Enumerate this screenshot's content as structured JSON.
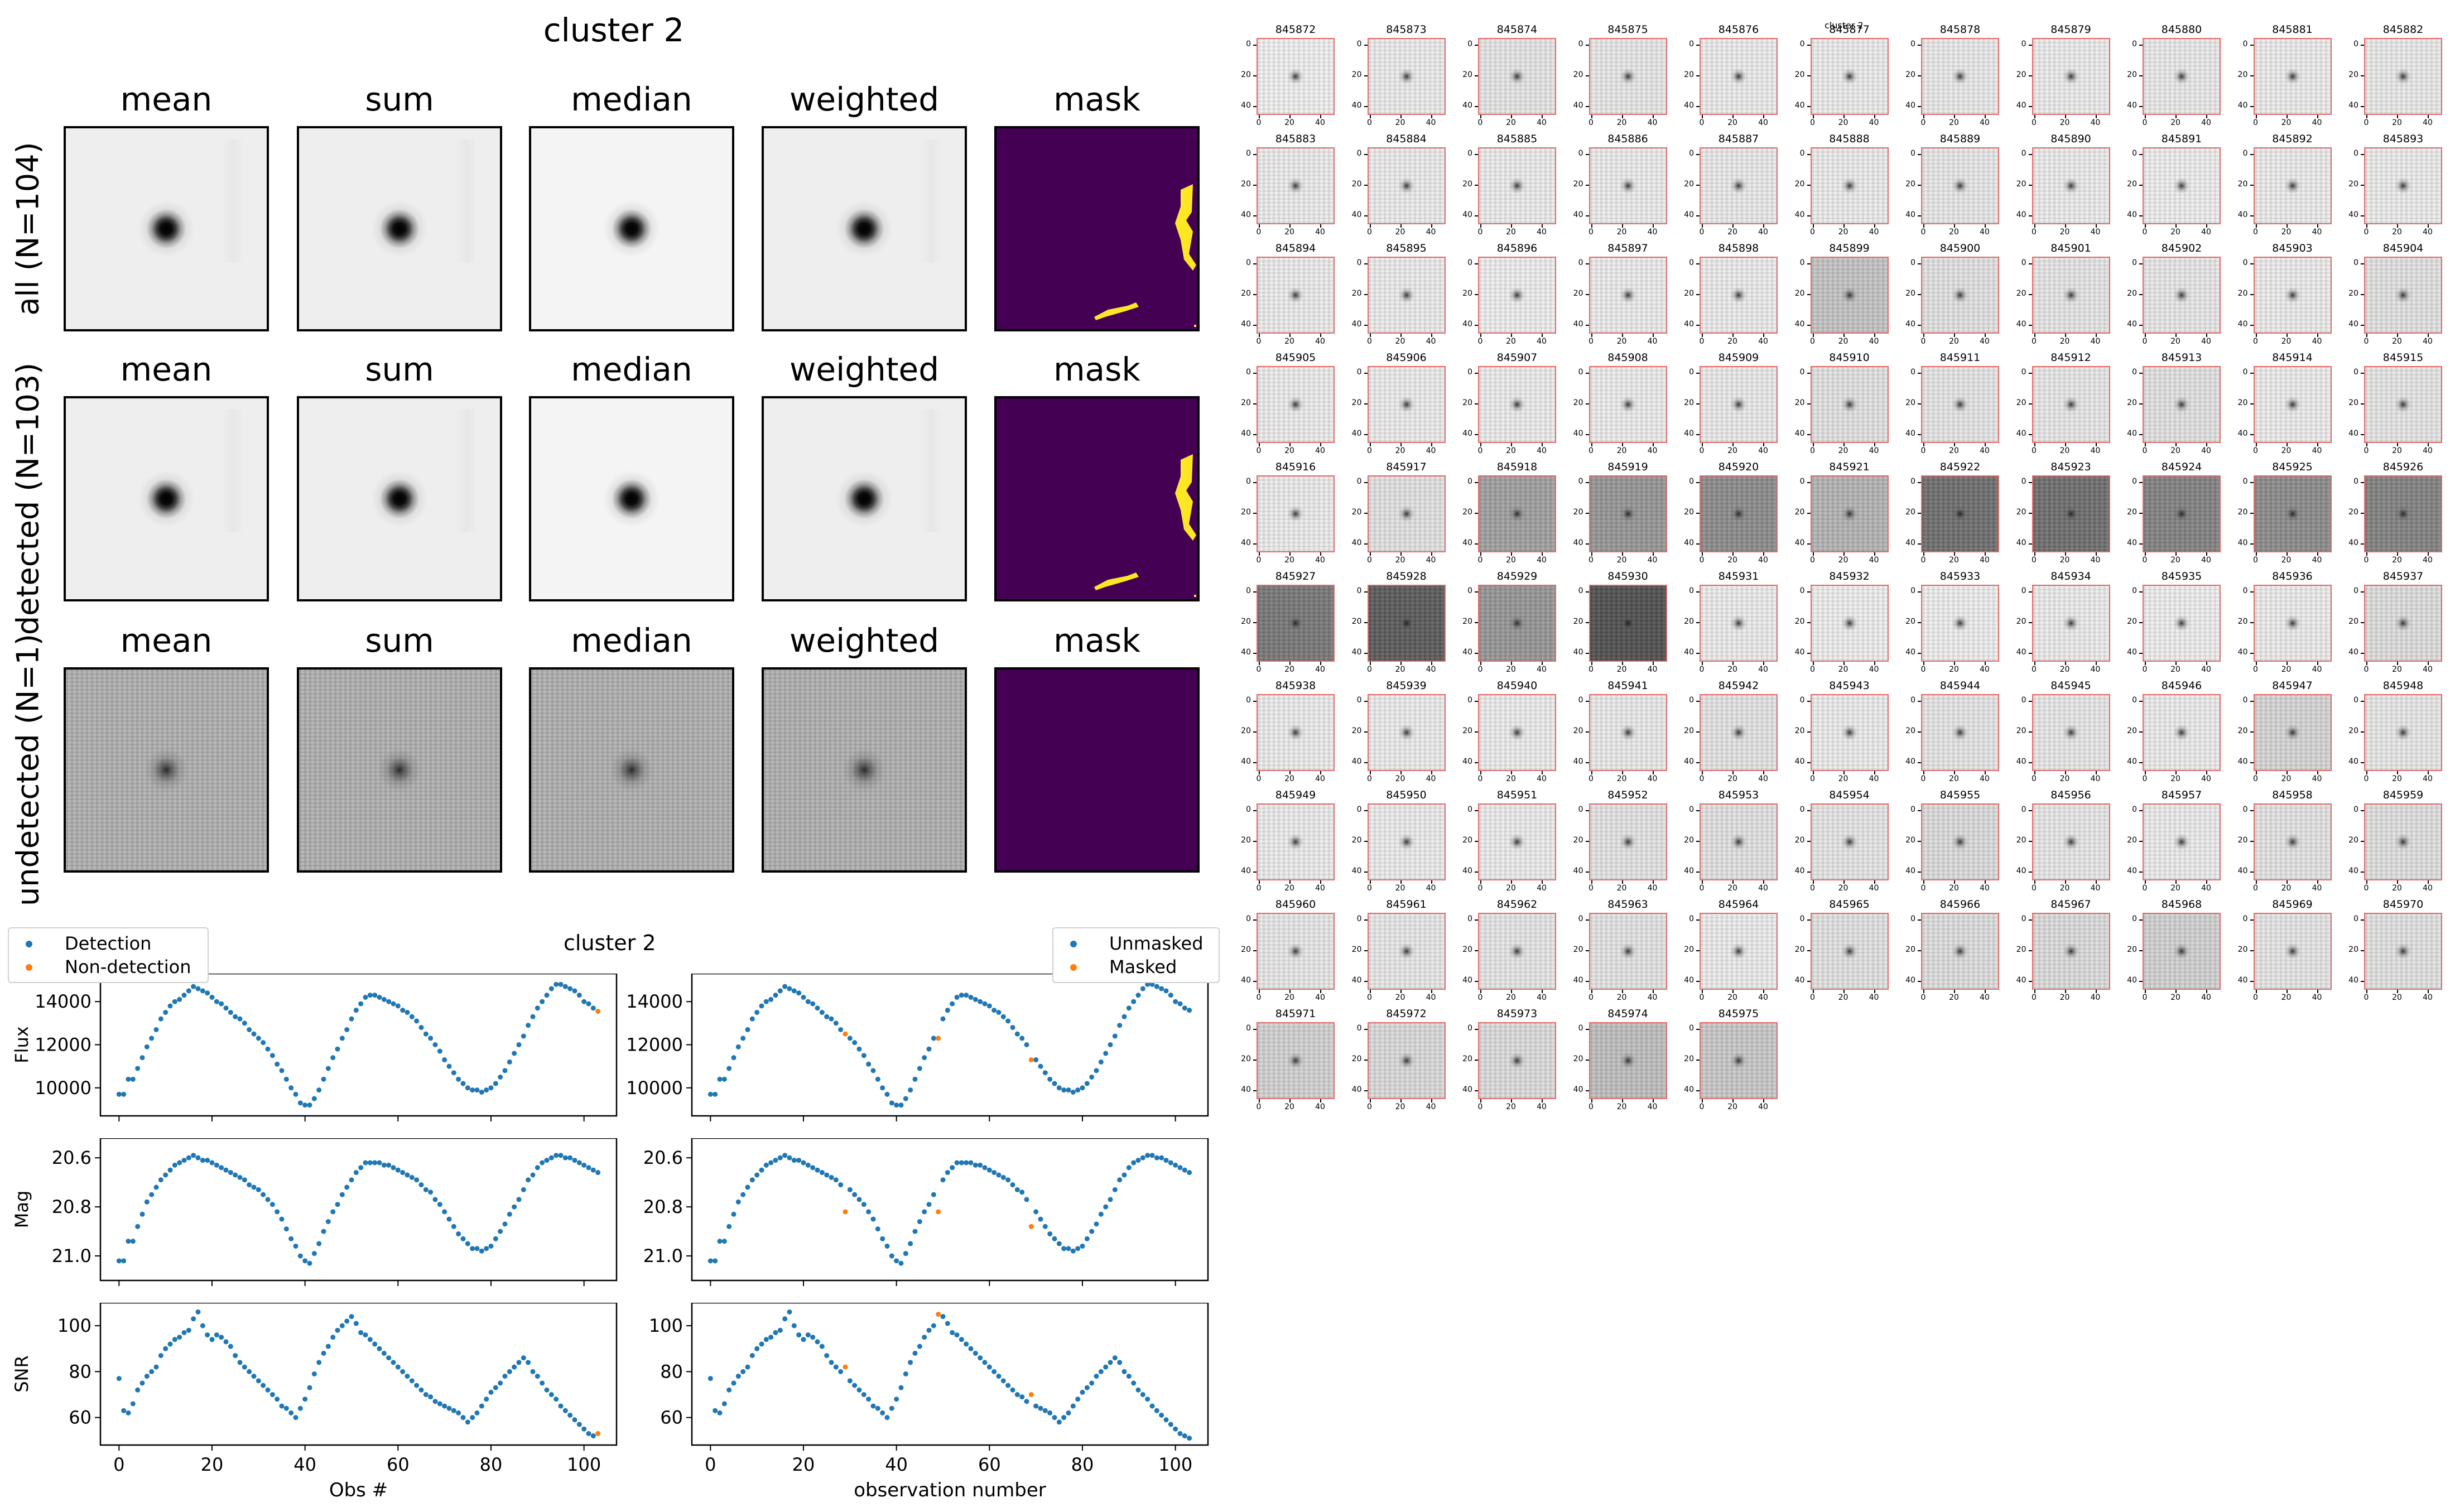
{
  "figure_title": "cluster 2",
  "stack_columns": [
    "mean",
    "sum",
    "median",
    "weighted",
    "mask"
  ],
  "stack_rows": [
    {
      "label": "all (N=104)",
      "noisy": false,
      "mask_shapes": true
    },
    {
      "label": "detected (N=103)",
      "noisy": false,
      "mask_shapes": true
    },
    {
      "label": "undetected (N=1)",
      "noisy": true,
      "mask_shapes": false
    }
  ],
  "colors": {
    "detection": "#1f77b4",
    "non_detection": "#ff7f0e",
    "mask_bg": "#440154",
    "mask_fg": "#fde725",
    "thumb_border": "#e46c6c"
  },
  "lightcurve_title": "cluster 2",
  "legend_left": [
    "Detection",
    "Non-detection"
  ],
  "legend_right": [
    "Unmasked",
    "Masked"
  ],
  "thumbs": {
    "ids": [
      "845872",
      "845873",
      "845874",
      "845875",
      "845876",
      "845877",
      "845878",
      "845879",
      "845880",
      "845881",
      "845882",
      "845883",
      "845884",
      "845885",
      "845886",
      "845887",
      "845888",
      "845889",
      "845890",
      "845891",
      "845892",
      "845893",
      "845894",
      "845895",
      "845896",
      "845897",
      "845898",
      "845899",
      "845900",
      "845901",
      "845902",
      "845903",
      "845904",
      "845905",
      "845906",
      "845907",
      "845908",
      "845909",
      "845910",
      "845911",
      "845912",
      "845913",
      "845914",
      "845915",
      "845916",
      "845917",
      "845918",
      "845919",
      "845920",
      "845921",
      "845922",
      "845923",
      "845924",
      "845925",
      "845926",
      "845927",
      "845928",
      "845929",
      "845930",
      "845931",
      "845932",
      "845933",
      "845934",
      "845935",
      "845936",
      "845937",
      "845938",
      "845939",
      "845940",
      "845941",
      "845942",
      "845943",
      "845944",
      "845945",
      "845946",
      "845947",
      "845948",
      "845949",
      "845950",
      "845951",
      "845952",
      "845953",
      "845954",
      "845955",
      "845956",
      "845957",
      "845958",
      "845959",
      "845960",
      "845961",
      "845962",
      "845963",
      "845964",
      "845965",
      "845966",
      "845967",
      "845968",
      "845969",
      "845970",
      "845971",
      "845972",
      "845973",
      "845974",
      "845975"
    ],
    "bg_gray": [
      240,
      236,
      230,
      232,
      236,
      236,
      234,
      236,
      234,
      236,
      234,
      236,
      236,
      236,
      236,
      234,
      236,
      232,
      236,
      238,
      236,
      236,
      236,
      236,
      238,
      236,
      236,
      196,
      226,
      230,
      232,
      236,
      226,
      236,
      236,
      236,
      236,
      234,
      226,
      230,
      232,
      226,
      236,
      230,
      236,
      226,
      160,
      150,
      140,
      180,
      110,
      110,
      130,
      140,
      130,
      120,
      90,
      150,
      80,
      236,
      238,
      238,
      236,
      238,
      236,
      222,
      236,
      236,
      236,
      234,
      228,
      236,
      230,
      232,
      236,
      214,
      232,
      236,
      236,
      236,
      228,
      226,
      230,
      220,
      232,
      236,
      228,
      224,
      232,
      232,
      230,
      228,
      236,
      226,
      222,
      220,
      210,
      230,
      226,
      210,
      218,
      220,
      190,
      200
    ],
    "y_ticks": [
      "0",
      "20",
      "40"
    ],
    "x_ticks": [
      "0",
      "20",
      "40"
    ],
    "overlay_label": "cluster 2"
  },
  "chart_data": [
    {
      "type": "scatter",
      "panel": "left",
      "ylabel": "Flux",
      "xlabel": "",
      "xlim": [
        -4,
        107
      ],
      "ylim": [
        8700,
        15300
      ],
      "yticks": [
        10000,
        12000,
        14000
      ],
      "ytick_labels": [
        "10000",
        "12000",
        "14000"
      ],
      "xticks": [
        0,
        20,
        40,
        60,
        80,
        100
      ],
      "xtick_labels": [],
      "series": [
        {
          "name": "Detection",
          "color": "#1f77b4",
          "x": "obs",
          "y": "flux"
        },
        {
          "name": "Non-detection",
          "color": "#ff7f0e",
          "x_points": [
            103
          ],
          "y_points": [
            13550
          ]
        }
      ]
    },
    {
      "type": "scatter",
      "panel": "left",
      "ylabel": "Mag",
      "xlabel": "",
      "xlim": [
        -4,
        107
      ],
      "ylim": [
        21.1,
        20.52
      ],
      "inverted_y": true,
      "yticks": [
        20.6,
        20.8,
        21.0
      ],
      "ytick_labels": [
        "20.6",
        "20.8",
        "21.0"
      ],
      "xticks": [
        0,
        20,
        40,
        60,
        80,
        100
      ],
      "xtick_labels": [],
      "series": [
        {
          "name": "Detection",
          "color": "#1f77b4",
          "x": "obs",
          "y": "mag"
        }
      ]
    },
    {
      "type": "scatter",
      "panel": "left",
      "ylabel": "SNR",
      "xlabel": "Obs #",
      "xlim": [
        -4,
        107
      ],
      "ylim": [
        48,
        110
      ],
      "yticks": [
        60,
        80,
        100
      ],
      "ytick_labels": [
        "60",
        "80",
        "100"
      ],
      "xticks": [
        0,
        20,
        40,
        60,
        80,
        100
      ],
      "xtick_labels": [
        "0",
        "20",
        "40",
        "60",
        "80",
        "100"
      ],
      "series": [
        {
          "name": "Detection",
          "color": "#1f77b4",
          "x": "obs",
          "y": "snr"
        },
        {
          "name": "Non-detection",
          "color": "#ff7f0e",
          "x_points": [
            103
          ],
          "y_points": [
            53
          ]
        }
      ]
    },
    {
      "type": "scatter",
      "panel": "right",
      "ylabel": "",
      "xlabel": "",
      "xlim": [
        -4,
        107
      ],
      "ylim": [
        8700,
        15300
      ],
      "yticks": [
        10000,
        12000,
        14000
      ],
      "ytick_labels": [
        "10000",
        "12000",
        "14000"
      ],
      "xticks": [
        0,
        20,
        40,
        60,
        80,
        100
      ],
      "xtick_labels": [],
      "series": [
        {
          "name": "Unmasked",
          "color": "#1f77b4",
          "x": "obs",
          "y": "flux"
        },
        {
          "name": "Masked",
          "color": "#ff7f0e",
          "x_points": [
            29,
            49,
            69
          ],
          "y_points": [
            12500,
            12300,
            11300
          ]
        }
      ]
    },
    {
      "type": "scatter",
      "panel": "right",
      "ylabel": "",
      "xlabel": "",
      "xlim": [
        -4,
        107
      ],
      "ylim": [
        21.1,
        20.52
      ],
      "inverted_y": true,
      "yticks": [
        20.6,
        20.8,
        21.0
      ],
      "ytick_labels": [
        "20.6",
        "20.8",
        "21.0"
      ],
      "xticks": [
        0,
        20,
        40,
        60,
        80,
        100
      ],
      "xtick_labels": [],
      "series": [
        {
          "name": "Unmasked",
          "color": "#1f77b4",
          "x": "obs",
          "y": "mag"
        },
        {
          "name": "Masked",
          "color": "#ff7f0e",
          "x_points": [
            29,
            49,
            69
          ],
          "y_points": [
            20.82,
            20.82,
            20.88
          ]
        }
      ]
    },
    {
      "type": "scatter",
      "panel": "right",
      "ylabel": "",
      "xlabel": "observation number",
      "xlim": [
        -4,
        107
      ],
      "ylim": [
        48,
        110
      ],
      "yticks": [
        60,
        80,
        100
      ],
      "ytick_labels": [
        "60",
        "80",
        "100"
      ],
      "xticks": [
        0,
        20,
        40,
        60,
        80,
        100
      ],
      "xtick_labels": [
        "0",
        "20",
        "40",
        "60",
        "80",
        "100"
      ],
      "series": [
        {
          "name": "Unmasked",
          "color": "#1f77b4",
          "x": "obs",
          "y": "snr"
        },
        {
          "name": "Masked",
          "color": "#ff7f0e",
          "x_points": [
            29,
            49,
            69
          ],
          "y_points": [
            82,
            105,
            70
          ]
        }
      ]
    }
  ],
  "series_values": {
    "flux": [
      9700,
      9700,
      10400,
      10400,
      10900,
      11400,
      11900,
      12300,
      12700,
      13200,
      13500,
      13800,
      14000,
      14100,
      14300,
      14500,
      14700,
      14600,
      14500,
      14400,
      14200,
      14000,
      13900,
      13700,
      13500,
      13300,
      13200,
      13000,
      12700,
      12500,
      12300,
      12100,
      11800,
      11500,
      11100,
      10800,
      10400,
      10000,
      9700,
      9300,
      9200,
      9200,
      9500,
      9900,
      10400,
      10900,
      11400,
      11800,
      12300,
      12700,
      13200,
      13600,
      13900,
      14200,
      14300,
      14300,
      14200,
      14100,
      14000,
      13900,
      13800,
      13600,
      13500,
      13300,
      13100,
      12800,
      12500,
      12300,
      12000,
      11700,
      11300,
      11000,
      10700,
      10400,
      10200,
      10000,
      9900,
      9900,
      9800,
      9900,
      10000,
      10200,
      10500,
      10800,
      11200,
      11600,
      12000,
      12400,
      12900,
      13300,
      13700,
      14000,
      14300,
      14600,
      14800,
      14800,
      14700,
      14600,
      14500,
      14300,
      14000,
      13900,
      13700,
      13600
    ],
    "mag": [
      21.02,
      21.02,
      20.94,
      20.94,
      20.88,
      20.83,
      20.78,
      20.75,
      20.72,
      20.69,
      20.67,
      20.65,
      20.63,
      20.62,
      20.61,
      20.6,
      20.59,
      20.6,
      20.61,
      20.61,
      20.62,
      20.63,
      20.64,
      20.65,
      20.66,
      20.67,
      20.68,
      20.69,
      20.71,
      20.72,
      20.73,
      20.75,
      20.77,
      20.79,
      20.82,
      20.85,
      20.89,
      20.93,
      20.96,
      21.0,
      21.02,
      21.03,
      20.99,
      20.95,
      20.9,
      20.86,
      20.82,
      20.79,
      20.75,
      20.72,
      20.69,
      20.66,
      20.64,
      20.62,
      20.62,
      20.62,
      20.62,
      20.63,
      20.63,
      20.64,
      20.65,
      20.66,
      20.67,
      20.68,
      20.69,
      20.71,
      20.73,
      20.74,
      20.77,
      20.79,
      20.82,
      20.85,
      20.88,
      20.91,
      20.93,
      20.95,
      20.97,
      20.97,
      20.98,
      20.97,
      20.96,
      20.93,
      20.9,
      20.87,
      20.83,
      20.8,
      20.77,
      20.73,
      20.69,
      20.67,
      20.64,
      20.62,
      20.61,
      20.6,
      20.59,
      20.59,
      20.6,
      20.6,
      20.61,
      20.62,
      20.63,
      20.64,
      20.65,
      20.66
    ],
    "snr": [
      77,
      63,
      62,
      66,
      72,
      75,
      78,
      80,
      82,
      87,
      90,
      92,
      94,
      95,
      97,
      98,
      103,
      106,
      100,
      96,
      94,
      96,
      95,
      93,
      91,
      87,
      84,
      82,
      80,
      78,
      76,
      74,
      72,
      70,
      68,
      65,
      64,
      62,
      60,
      64,
      68,
      73,
      79,
      84,
      88,
      91,
      95,
      98,
      100,
      102,
      104,
      101,
      97,
      96,
      94,
      92,
      90,
      88,
      86,
      84,
      82,
      80,
      78,
      76,
      74,
      72,
      70,
      69,
      67,
      66,
      65,
      64,
      63,
      62,
      60,
      58,
      60,
      62,
      65,
      68,
      71,
      73,
      75,
      78,
      80,
      82,
      84,
      86,
      84,
      80,
      78,
      75,
      72,
      70,
      68,
      65,
      63,
      61,
      59,
      57,
      55,
      53,
      52,
      51
    ]
  }
}
